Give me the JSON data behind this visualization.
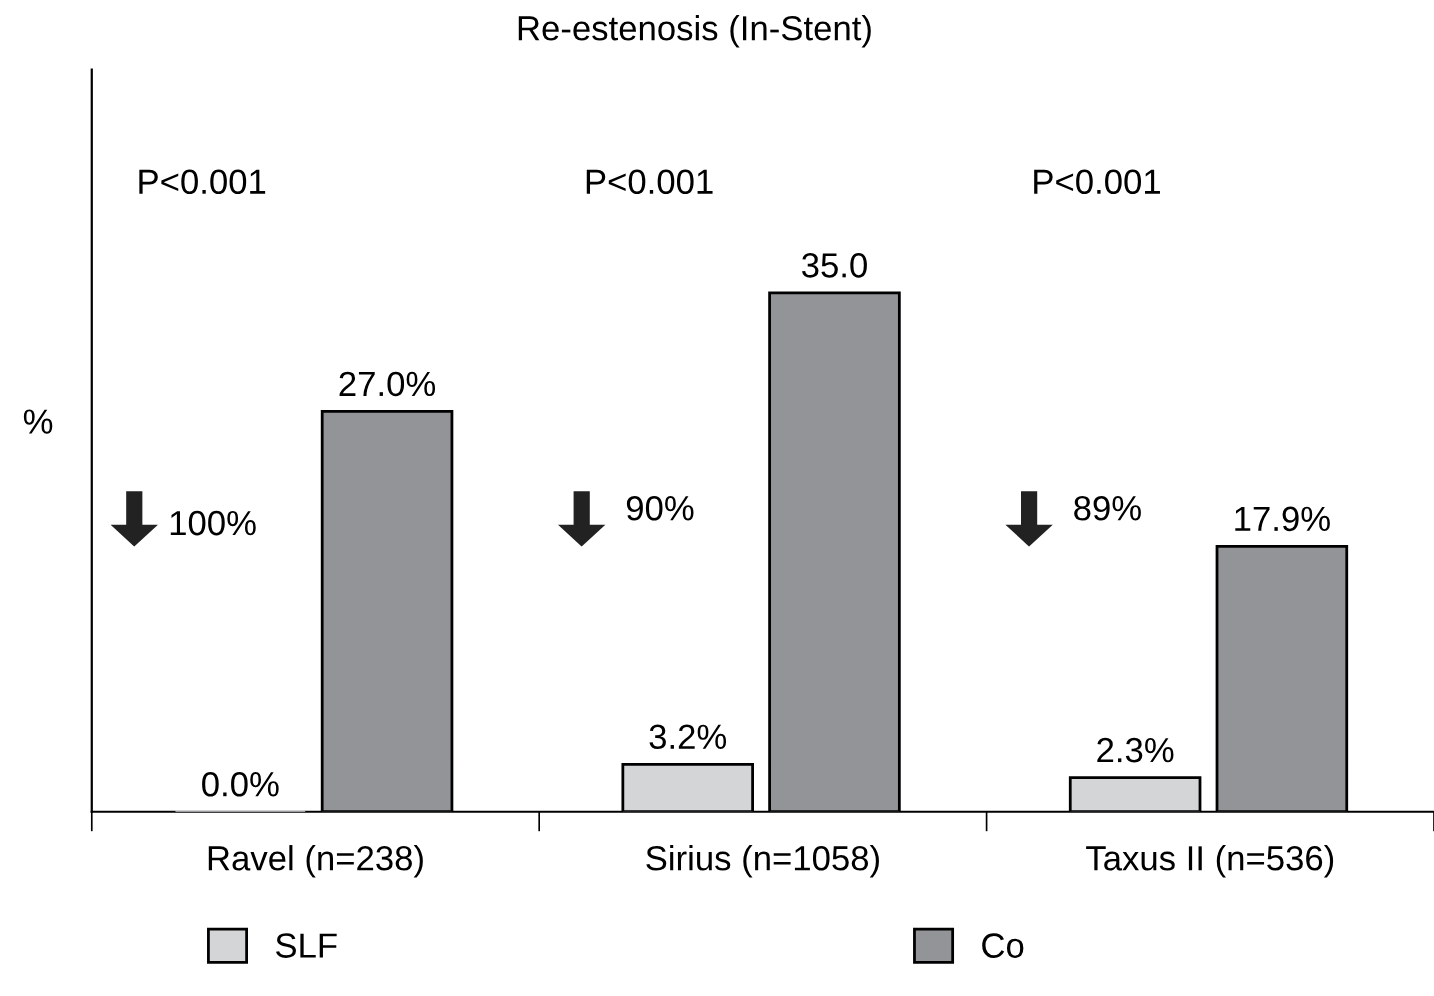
{
  "chart_data": {
    "type": "bar",
    "title": "Re-estenosis (In-Stent)",
    "ylabel": "%",
    "categories": [
      "Ravel (n=238)",
      "Sirius (n=1058)",
      "Taxus II (n=536)"
    ],
    "series": [
      {
        "name": "SLF",
        "color": "#d4d5d7",
        "values": [
          0.0,
          3.2,
          2.3
        ],
        "value_labels": [
          "0.0%",
          "3.2%",
          "2.3%"
        ]
      },
      {
        "name": "Co",
        "color": "#939498",
        "values": [
          27.0,
          35.0,
          17.9
        ],
        "value_labels": [
          "27.0%",
          "35.0",
          "17.9%"
        ]
      }
    ],
    "annotations": [
      "P<0.001",
      "P<0.001",
      "P<0.001",
      "100%",
      "90%",
      "89%"
    ],
    "legend": "bottom",
    "grid": false
  }
}
